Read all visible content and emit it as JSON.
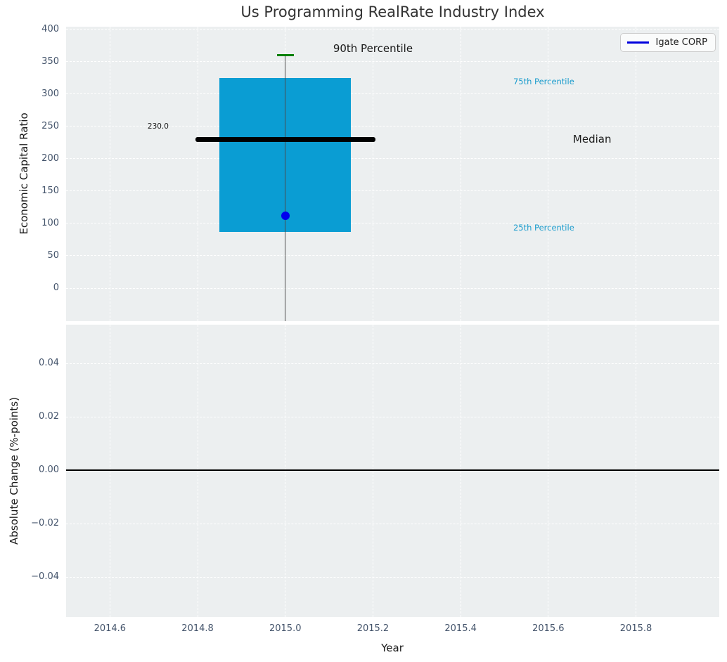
{
  "figure": {
    "title": "Us Programming RealRate Industry Index",
    "panel_background": "#eceff0",
    "gridline_color": "#ffffff",
    "tick_color": "#44546b"
  },
  "chart_data": [
    {
      "type": "box",
      "title": "Us Programming RealRate Industry Index",
      "ylabel": "Economic Capital Ratio",
      "xlabel": "",
      "xlim": [
        2014.5,
        2015.99
      ],
      "ylim": [
        -51,
        404
      ],
      "yticks": [
        0,
        50,
        100,
        150,
        200,
        250,
        300,
        350,
        400
      ],
      "ytick_labels": [
        "0",
        "50",
        "100",
        "150",
        "200",
        "250",
        "300",
        "350",
        "400"
      ],
      "xticks": [
        2014.6,
        2014.8,
        2015.0,
        2015.2,
        2015.4,
        2015.6,
        2015.8
      ],
      "show_xtick_labels": false,
      "grid": true,
      "legend": {
        "label": "Igate CORP",
        "line_color": "#0000dd",
        "position": "upper right"
      },
      "series": [
        {
          "name": "industry-distribution-box",
          "x": 2015.0,
          "q25": 87,
          "median": 230.0,
          "q75": 325,
          "p90": 360,
          "box_width": 0.3,
          "median_line_span": 0.41,
          "whisker_low_clipped": true,
          "box_color": "#0a9dd3",
          "median_color": "#000000",
          "cap_color": "#008000",
          "whisker_color": "#4a4a4a"
        },
        {
          "name": "Igate CORP",
          "type": "point",
          "x": 2015.0,
          "y": 112,
          "color": "#0000ee"
        }
      ],
      "annotations": [
        {
          "text": "90th Percentile",
          "x": 2015.2,
          "y": 370,
          "color": "#1a1a1a",
          "size": 15,
          "align": "center"
        },
        {
          "text": "75th Percentile",
          "x": 2015.52,
          "y": 319,
          "color": "#1b9ccd",
          "size": 11.5,
          "align": "left"
        },
        {
          "text": "Median",
          "x": 2015.7,
          "y": 230,
          "color": "#1a1a1a",
          "size": 15,
          "align": "center"
        },
        {
          "text": "25th Percentile",
          "x": 2015.52,
          "y": 93,
          "color": "#1b9ccd",
          "size": 11.5,
          "align": "left"
        },
        {
          "text": "230.0",
          "x": 2014.71,
          "y": 250,
          "color": "#1a1a1a",
          "size": 10.5,
          "align": "center"
        }
      ]
    },
    {
      "type": "line",
      "ylabel": "Absolute Change (%-points)",
      "xlabel": "Year",
      "xlim": [
        2014.5,
        2015.99
      ],
      "ylim": [
        -0.055,
        0.0545
      ],
      "yticks": [
        0.04,
        0.02,
        0.0,
        -0.02,
        -0.04
      ],
      "ytick_labels": [
        "0.04",
        "0.02",
        "0.00",
        "−0.02",
        "−0.04"
      ],
      "xticks": [
        2014.6,
        2014.8,
        2015.0,
        2015.2,
        2015.4,
        2015.6,
        2015.8
      ],
      "xtick_labels": [
        "2014.6",
        "2014.8",
        "2015.0",
        "2015.2",
        "2015.4",
        "2015.6",
        "2015.8"
      ],
      "show_xtick_labels": true,
      "grid": true,
      "zero_line": {
        "y": 0.0,
        "color": "#000000"
      },
      "series": []
    }
  ]
}
